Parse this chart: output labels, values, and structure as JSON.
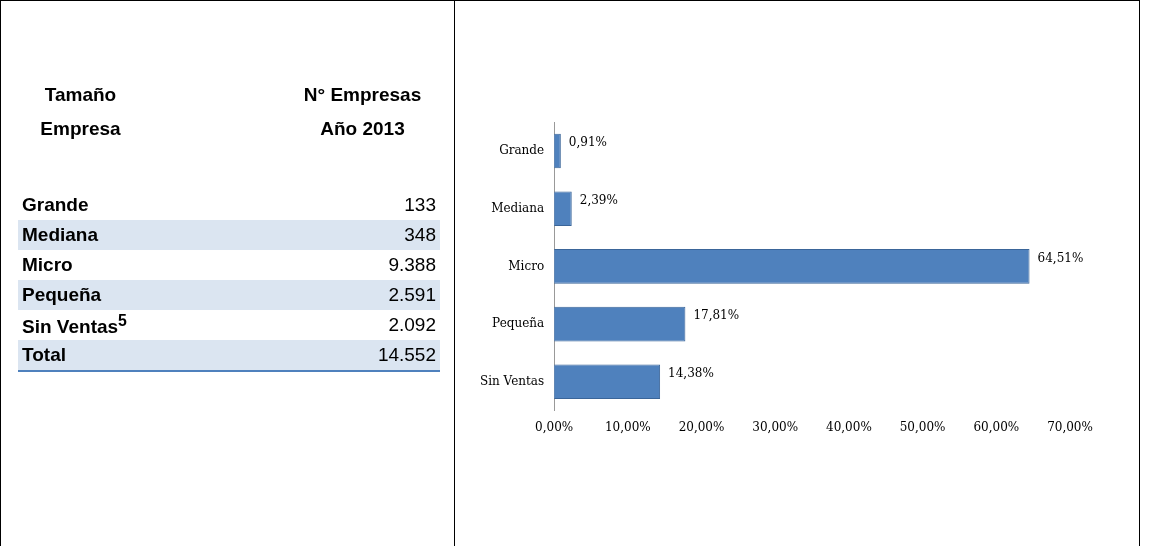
{
  "chart_data": [
    {
      "type": "other",
      "annotations": [
        "Tamaño Empresa",
        "N° Empresas Año 2013"
      ],
      "categories": [
        "Grande",
        "Mediana",
        "Micro",
        "Pequeña",
        "Sin Ventas$^{5}$",
        "Total"
      ],
      "value_labels": [
        "133",
        "348",
        "9.388",
        "2.591",
        "2.092",
        "14.552"
      ]
    },
    {
      "type": "bar",
      "orientation": "horizontal",
      "categories": [
        "Grande",
        "Mediana",
        "Micro",
        "Pequeña",
        "Sin Ventas"
      ],
      "values": [
        0.91,
        2.39,
        64.51,
        17.81,
        14.38
      ],
      "color": "#4f81bd",
      "value_labels": [
        "0,91%",
        "2,39%",
        "64,51%",
        "17,81%",
        "14,38%"
      ],
      "xlim": [
        0,
        70
      ],
      "xticks": [
        {
          "value": 0,
          "label": "0,00%"
        },
        {
          "value": 10,
          "label": "10,00%"
        },
        {
          "value": 20,
          "label": "20,00%"
        },
        {
          "value": 30,
          "label": "30,00%"
        },
        {
          "value": 40,
          "label": "40,00%"
        },
        {
          "value": 50,
          "label": "50,00%"
        },
        {
          "value": 60,
          "label": "60,00%"
        },
        {
          "value": 70,
          "label": "70,00%"
        }
      ],
      "grid": false,
      "legend": false
    }
  ]
}
